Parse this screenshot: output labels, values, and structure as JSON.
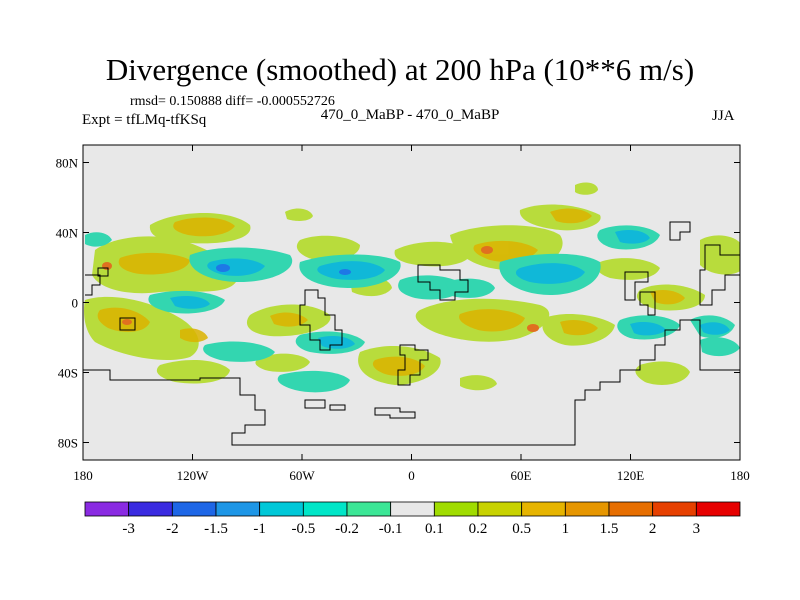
{
  "title": "Divergence (smoothed) at 200 hPa (10**6 m/s)",
  "stats": "rmsd= 0.150888  diff= -0.000552726",
  "experiment": "Expt = tfLMq-tfKSq",
  "case_label": "470_0_MaBP - 470_0_MaBP",
  "season": "JJA",
  "map": {
    "lon_range": [
      -180,
      180
    ],
    "lat_range": [
      -90,
      90
    ],
    "lat_ticks": [
      {
        "value": 80,
        "label": "80N"
      },
      {
        "value": 40,
        "label": "40N"
      },
      {
        "value": 0,
        "label": "0"
      },
      {
        "value": -40,
        "label": "40S"
      },
      {
        "value": -80,
        "label": "80S"
      }
    ],
    "lon_ticks": [
      {
        "value": -180,
        "label": "180"
      },
      {
        "value": -120,
        "label": "120W"
      },
      {
        "value": -60,
        "label": "60W"
      },
      {
        "value": 0,
        "label": "0"
      },
      {
        "value": 60,
        "label": "60E"
      },
      {
        "value": 120,
        "label": "120E"
      },
      {
        "value": 180,
        "label": "180"
      }
    ],
    "background_color": "#e8e8e8",
    "coast_color": "#000000"
  },
  "colorbar": {
    "colors": [
      "#8a2be2",
      "#3a2be0",
      "#1e66e6",
      "#1e96e6",
      "#00c8d8",
      "#00e6c8",
      "#3ce696",
      "#e8e8e8",
      "#a0dc00",
      "#c8d200",
      "#e6b400",
      "#e69600",
      "#e66e00",
      "#e64000",
      "#e60000"
    ],
    "labels": [
      "-3",
      "-2",
      "-1.5",
      "-1",
      "-0.5",
      "-0.2",
      "-0.1",
      "0.1",
      "0.2",
      "0.5",
      "1",
      "1.5",
      "2",
      "3"
    ]
  }
}
